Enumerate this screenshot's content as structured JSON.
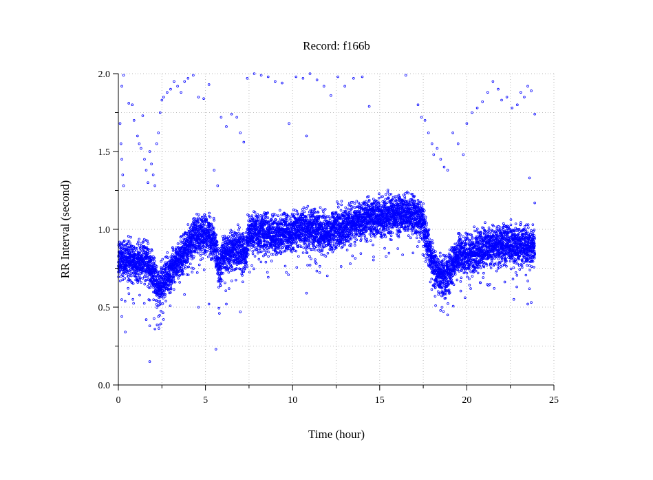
{
  "chart_data": {
    "type": "scatter",
    "title": "Record:  f166b",
    "xlabel": "Time (hour)",
    "ylabel": "RR Interval (second)",
    "xlim": [
      0,
      25
    ],
    "ylim": [
      0,
      2
    ],
    "xticks": [
      0,
      5,
      10,
      15,
      20,
      25
    ],
    "xminor": [
      2.5,
      7.5,
      12.5,
      17.5,
      22.5
    ],
    "yticks": [
      0.0,
      0.5,
      1.0,
      1.5,
      2.0
    ],
    "yminor": [
      0.25,
      0.75,
      1.25,
      1.75
    ],
    "xtick_labels": [
      "0",
      "5",
      "10",
      "15",
      "20",
      "25"
    ],
    "ytick_labels": [
      "0.0",
      "0.5",
      "1.0",
      "1.5",
      "2.0"
    ],
    "grid": true,
    "series_color": "#0000ff",
    "trend": [
      [
        0.0,
        0.8
      ],
      [
        0.5,
        0.82
      ],
      [
        1.0,
        0.78
      ],
      [
        1.5,
        0.8
      ],
      [
        2.0,
        0.72
      ],
      [
        2.3,
        0.62
      ],
      [
        2.7,
        0.7
      ],
      [
        3.0,
        0.72
      ],
      [
        3.5,
        0.8
      ],
      [
        4.0,
        0.9
      ],
      [
        4.5,
        0.96
      ],
      [
        5.0,
        0.97
      ],
      [
        5.5,
        0.92
      ],
      [
        5.8,
        0.72
      ],
      [
        6.0,
        0.84
      ],
      [
        6.5,
        0.86
      ],
      [
        7.0,
        0.87
      ],
      [
        7.3,
        0.83
      ],
      [
        7.5,
        0.98
      ],
      [
        8.0,
        0.97
      ],
      [
        9.0,
        0.97
      ],
      [
        10.0,
        0.99
      ],
      [
        10.5,
        1.0
      ],
      [
        11.0,
        1.0
      ],
      [
        12.0,
        0.98
      ],
      [
        13.0,
        1.02
      ],
      [
        14.0,
        1.06
      ],
      [
        15.0,
        1.08
      ],
      [
        16.0,
        1.1
      ],
      [
        17.0,
        1.1
      ],
      [
        17.5,
        1.04
      ],
      [
        18.0,
        0.78
      ],
      [
        18.5,
        0.7
      ],
      [
        19.0,
        0.72
      ],
      [
        19.5,
        0.84
      ],
      [
        20.0,
        0.84
      ],
      [
        21.0,
        0.88
      ],
      [
        22.0,
        0.9
      ],
      [
        23.0,
        0.9
      ],
      [
        23.9,
        0.88
      ]
    ],
    "points": [
      [
        0.2,
        1.92
      ],
      [
        0.3,
        1.99
      ],
      [
        0.1,
        1.68
      ],
      [
        0.15,
        1.55
      ],
      [
        0.2,
        1.45
      ],
      [
        0.25,
        1.35
      ],
      [
        0.3,
        1.28
      ],
      [
        0.6,
        1.81
      ],
      [
        0.8,
        1.8
      ],
      [
        0.9,
        1.7
      ],
      [
        1.1,
        1.6
      ],
      [
        1.2,
        1.55
      ],
      [
        1.3,
        1.52
      ],
      [
        1.4,
        1.73
      ],
      [
        1.5,
        1.45
      ],
      [
        1.6,
        1.38
      ],
      [
        1.7,
        1.3
      ],
      [
        1.8,
        1.5
      ],
      [
        1.9,
        1.42
      ],
      [
        2.0,
        1.35
      ],
      [
        2.1,
        1.28
      ],
      [
        2.2,
        1.55
      ],
      [
        2.3,
        1.62
      ],
      [
        2.4,
        1.75
      ],
      [
        2.5,
        1.83
      ],
      [
        2.6,
        1.85
      ],
      [
        2.8,
        1.88
      ],
      [
        3.0,
        1.9
      ],
      [
        3.2,
        1.95
      ],
      [
        3.4,
        1.92
      ],
      [
        3.6,
        1.88
      ],
      [
        3.8,
        1.95
      ],
      [
        4.0,
        1.97
      ],
      [
        4.3,
        1.99
      ],
      [
        4.6,
        1.85
      ],
      [
        4.9,
        1.84
      ],
      [
        5.2,
        1.93
      ],
      [
        5.5,
        1.38
      ],
      [
        5.7,
        1.28
      ],
      [
        5.9,
        1.72
      ],
      [
        6.2,
        1.66
      ],
      [
        6.5,
        1.74
      ],
      [
        6.8,
        1.72
      ],
      [
        7.0,
        1.62
      ],
      [
        7.2,
        1.56
      ],
      [
        7.4,
        1.97
      ],
      [
        7.8,
        2.0
      ],
      [
        8.2,
        1.99
      ],
      [
        8.6,
        1.98
      ],
      [
        9.0,
        1.95
      ],
      [
        9.4,
        1.94
      ],
      [
        9.8,
        1.68
      ],
      [
        10.2,
        1.98
      ],
      [
        10.6,
        1.97
      ],
      [
        10.8,
        1.6
      ],
      [
        11.0,
        2.0
      ],
      [
        11.4,
        1.96
      ],
      [
        11.8,
        1.92
      ],
      [
        12.2,
        1.86
      ],
      [
        12.6,
        1.98
      ],
      [
        13.0,
        1.92
      ],
      [
        13.5,
        1.97
      ],
      [
        14.0,
        1.98
      ],
      [
        14.4,
        1.79
      ],
      [
        16.5,
        1.99
      ],
      [
        17.2,
        1.8
      ],
      [
        17.4,
        1.72
      ],
      [
        17.6,
        1.7
      ],
      [
        17.8,
        1.62
      ],
      [
        18.0,
        1.55
      ],
      [
        18.1,
        1.48
      ],
      [
        18.3,
        1.52
      ],
      [
        18.5,
        1.45
      ],
      [
        18.7,
        1.4
      ],
      [
        18.9,
        1.38
      ],
      [
        19.2,
        1.62
      ],
      [
        19.5,
        1.55
      ],
      [
        19.8,
        1.48
      ],
      [
        20.0,
        1.68
      ],
      [
        20.3,
        1.75
      ],
      [
        20.6,
        1.78
      ],
      [
        20.9,
        1.82
      ],
      [
        21.2,
        1.88
      ],
      [
        21.5,
        1.95
      ],
      [
        21.8,
        1.9
      ],
      [
        22.0,
        1.83
      ],
      [
        22.3,
        1.85
      ],
      [
        22.6,
        1.78
      ],
      [
        22.9,
        1.8
      ],
      [
        23.1,
        1.88
      ],
      [
        23.3,
        1.85
      ],
      [
        23.5,
        1.92
      ],
      [
        23.7,
        1.89
      ],
      [
        23.9,
        1.74
      ],
      [
        0.2,
        0.44
      ],
      [
        0.4,
        0.34
      ],
      [
        1.6,
        0.42
      ],
      [
        1.8,
        0.38
      ],
      [
        1.8,
        0.15
      ],
      [
        2.1,
        0.36
      ],
      [
        2.3,
        0.44
      ],
      [
        4.6,
        0.5
      ],
      [
        5.2,
        0.52
      ],
      [
        5.6,
        0.23
      ],
      [
        5.8,
        0.46
      ],
      [
        6.2,
        0.52
      ],
      [
        7.0,
        0.47
      ],
      [
        10.8,
        0.59
      ],
      [
        18.9,
        0.45
      ],
      [
        22.7,
        0.55
      ],
      [
        23.5,
        0.52
      ],
      [
        23.7,
        0.53
      ],
      [
        23.9,
        1.17
      ],
      [
        23.6,
        1.33
      ]
    ]
  }
}
